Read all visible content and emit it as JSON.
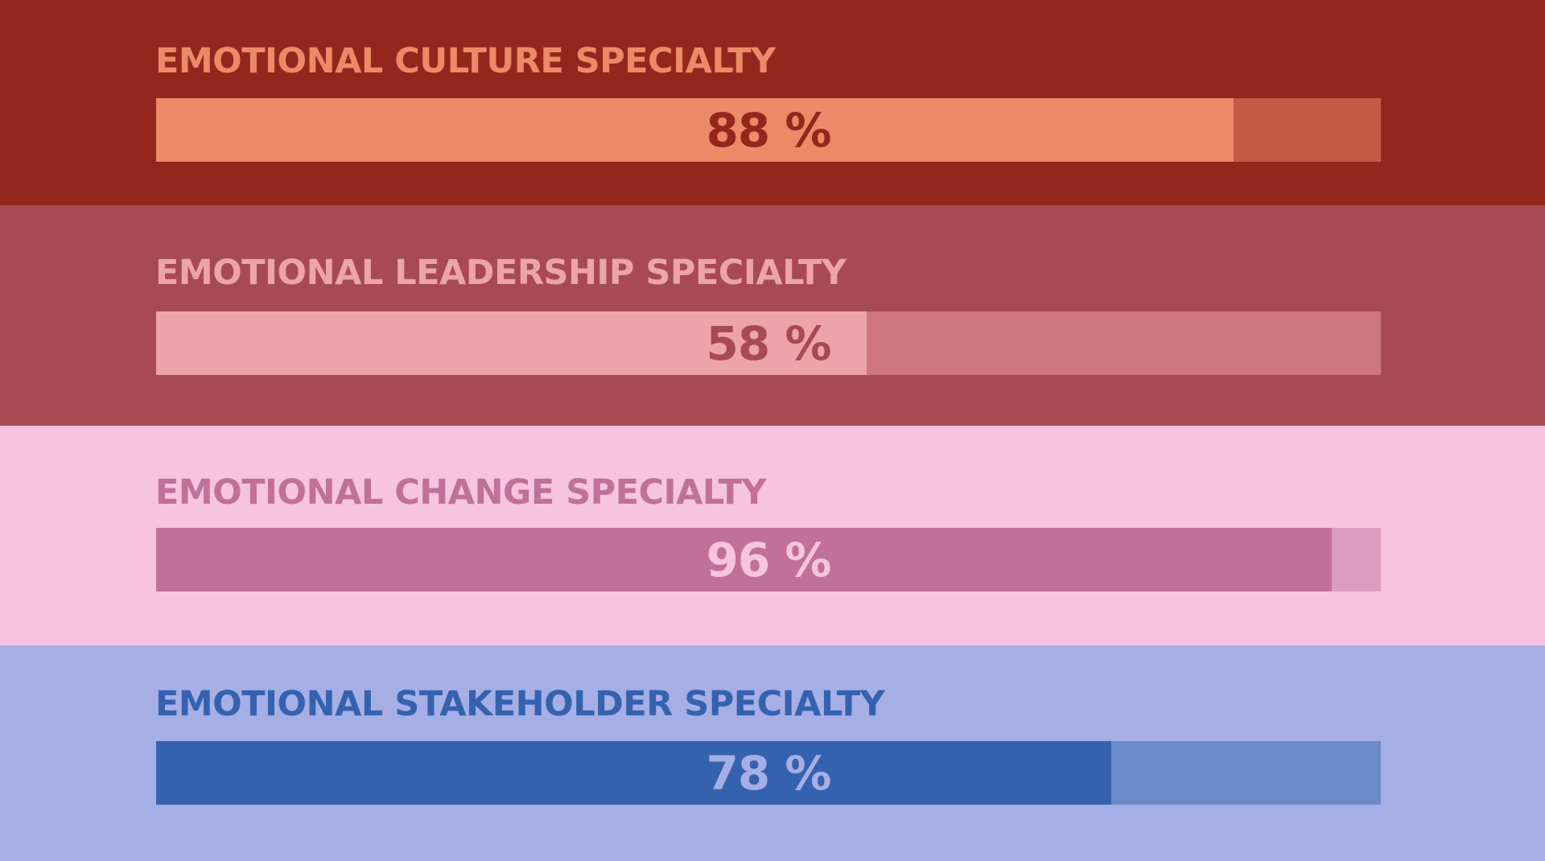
{
  "chart_data": {
    "type": "bar",
    "orientation": "horizontal",
    "categories": [
      "EMOTIONAL CULTURE SPECIALTY",
      "EMOTIONAL LEADERSHIP SPECIALTY",
      "EMOTIONAL CHANGE SPECIALTY",
      "EMOTIONAL STAKEHOLDER SPECIALTY"
    ],
    "values": [
      88,
      58,
      96,
      78
    ],
    "value_labels": [
      "88 %",
      "58 %",
      "96 %",
      "78 %"
    ],
    "xlim": [
      0,
      100
    ],
    "grid": false,
    "legend": "none"
  },
  "bands": [
    {
      "title": "EMOTIONAL CULTURE SPECIALTY",
      "value": 88,
      "label": "88 %",
      "colors": {
        "background": "#93271e",
        "title": "#ec8a68",
        "fill": "#ec8a68",
        "track": "#c35b47",
        "label": "#93271e"
      }
    },
    {
      "title": "EMOTIONAL LEADERSHIP SPECIALTY",
      "value": 58,
      "label": "58 %",
      "colors": {
        "background": "#a74a52",
        "title": "#eda4a8",
        "fill": "#eda4a8",
        "track": "#cd767c",
        "label": "#a74a52"
      }
    },
    {
      "title": "EMOTIONAL CHANGE SPECIALTY",
      "value": 96,
      "label": "96 %",
      "colors": {
        "background": "#f6c4e0",
        "title": "#c07099",
        "fill": "#c07099",
        "track": "#dc9bbf",
        "label": "#f6c4e0"
      }
    },
    {
      "title": "EMOTIONAL STAKEHOLDER SPECIALTY",
      "value": 78,
      "label": "78 %",
      "colors": {
        "background": "#a6aee6",
        "title": "#3462ae",
        "fill": "#3462ae",
        "track": "#6c89c8",
        "label": "#a6aee6"
      }
    }
  ]
}
